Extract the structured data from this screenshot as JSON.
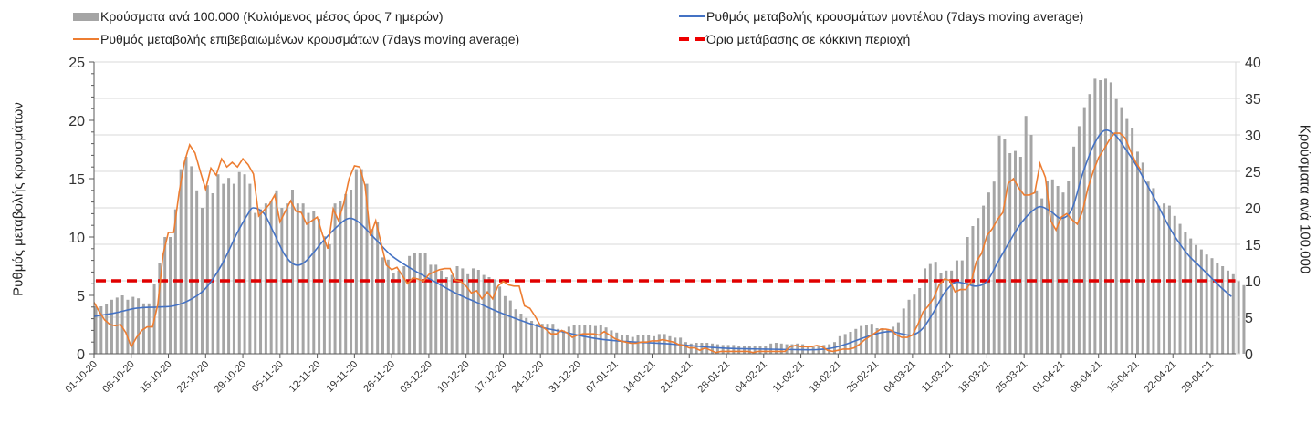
{
  "chart_data": {
    "type": "bar+line",
    "start_date": "01-10-20",
    "legend": [
      {
        "name": "Κρούσματα ανά 100.000 (Κυλιόμενος μέσος όρος 7 ημερών)",
        "color": "#a5a5a5",
        "kind": "bar"
      },
      {
        "name": "Ρυθμός μεταβολής κρουσμάτων μοντέλου (7days moving average)",
        "color": "#4472c4",
        "kind": "line"
      },
      {
        "name": "Ρυθμός μεταβολής επιβεβαιωμένων κρουσμάτων (7days moving average)",
        "color": "#ed7d31",
        "kind": "line"
      },
      {
        "name": "Όριο μετάβασης σε κόκκινη περιοχή",
        "color": "#e00000",
        "kind": "dashed"
      }
    ],
    "ylabel_left": "Ρυθμός μεταβολής κρουσμάτων",
    "ylabel_right": "Κρούσματα ανά 100.000",
    "ylim_left": [
      0,
      25
    ],
    "ylim_right": [
      0,
      40
    ],
    "yticks_left": [
      "0",
      "5",
      "10",
      "15",
      "20",
      "25"
    ],
    "yticks_right": [
      "0",
      "5",
      "10",
      "15",
      "20",
      "25",
      "30",
      "35",
      "40"
    ],
    "grid": true,
    "x_tick_labels": [
      "01-10-20",
      "08-10-20",
      "15-10-20",
      "22-10-20",
      "29-10-20",
      "05-11-20",
      "12-11-20",
      "19-11-20",
      "26-11-20",
      "03-12-20",
      "10-12-20",
      "17-12-20",
      "24-12-20",
      "31-12-20",
      "07-01-21",
      "14-01-21",
      "21-01-21",
      "28-01-21",
      "04-02-21",
      "11-02-21",
      "18-02-21",
      "25-02-21",
      "04-03-21",
      "11-03-21",
      "18-03-21",
      "25-03-21",
      "01-04-21",
      "08-04-21",
      "15-04-21",
      "22-04-21",
      "29-04-21"
    ],
    "x_tick_interval_days": 7,
    "threshold_left": 6.25,
    "bars_right_axis": [
      6.5,
      6.5,
      6.8,
      7.4,
      7.7,
      8.0,
      7.4,
      7.8,
      7.6,
      6.9,
      6.9,
      9.6,
      12.5,
      16.0,
      16.0,
      19.8,
      25.3,
      27.0,
      25.7,
      22.4,
      20.0,
      23.1,
      22.0,
      24.6,
      23.3,
      24.1,
      23.3,
      24.9,
      24.6,
      23.3,
      19.3,
      19.8,
      20.6,
      21.0,
      22.4,
      20.0,
      20.6,
      22.5,
      20.6,
      20.6,
      19.3,
      19.5,
      18.5,
      16.1,
      15.0,
      20.6,
      21.0,
      21.9,
      22.5,
      25.3,
      25.3,
      23.3,
      17.1,
      18.1,
      13.2,
      12.9,
      11.0,
      11.4,
      12.0,
      13.4,
      13.8,
      13.8,
      13.8,
      12.2,
      12.2,
      11.4,
      10.5,
      10.8,
      12.0,
      11.7,
      10.9,
      11.7,
      11.5,
      10.8,
      10.5,
      10.2,
      9.2,
      7.9,
      7.3,
      6.1,
      5.5,
      4.9,
      4.5,
      4.1,
      4.1,
      4.1,
      4.1,
      3.4,
      3.2,
      3.7,
      3.9,
      3.9,
      3.9,
      3.9,
      3.8,
      3.9,
      3.6,
      3.2,
      2.9,
      2.5,
      2.6,
      2.3,
      2.5,
      2.5,
      2.5,
      2.4,
      2.7,
      2.7,
      2.4,
      2.2,
      2.2,
      1.6,
      1.4,
      1.5,
      1.5,
      1.5,
      1.4,
      1.3,
      1.2,
      1.2,
      1.2,
      1.1,
      1.1,
      1.0,
      1.0,
      1.1,
      1.1,
      1.4,
      1.5,
      1.4,
      1.3,
      1.3,
      1.4,
      1.3,
      1.1,
      0.9,
      1.0,
      1.2,
      1.3,
      1.6,
      2.4,
      2.7,
      3.0,
      3.4,
      3.8,
      3.9,
      4.1,
      3.5,
      3.5,
      3.4,
      3.7,
      4.3,
      6.2,
      7.4,
      8.1,
      9.0,
      11.7,
      12.3,
      12.6,
      11.0,
      11.4,
      11.4,
      12.8,
      12.8,
      16.0,
      17.5,
      18.6,
      20.3,
      22.1,
      23.6,
      29.9,
      29.4,
      27.5,
      27.8,
      27.0,
      32.6,
      30.0,
      22.4,
      21.3,
      23.7,
      23.9,
      23.0,
      22.1,
      23.7,
      28.4,
      31.2,
      33.8,
      35.6,
      37.7,
      37.5,
      37.7,
      37.2,
      34.9,
      33.8,
      32.3,
      31.0,
      27.7,
      26.2,
      23.6,
      22.7,
      20.3,
      20.6,
      20.3,
      18.9,
      17.8,
      16.7,
      15.8,
      14.9,
      14.3,
      13.6,
      13.1,
      12.5,
      12.0,
      11.4,
      10.9,
      10.0,
      9.4
    ],
    "model_line_left_keypoints": [
      [
        0,
        3.2
      ],
      [
        4,
        3.5
      ],
      [
        8,
        3.9
      ],
      [
        12,
        4.0
      ],
      [
        15,
        4.1
      ],
      [
        18,
        4.6
      ],
      [
        21,
        5.6
      ],
      [
        24,
        7.6
      ],
      [
        27,
        10.4
      ],
      [
        29,
        12.0
      ],
      [
        30,
        12.5
      ],
      [
        32,
        12.0
      ],
      [
        34,
        10.2
      ],
      [
        36,
        8.4
      ],
      [
        38,
        7.6
      ],
      [
        40,
        8.0
      ],
      [
        43,
        9.6
      ],
      [
        46,
        11.0
      ],
      [
        48,
        11.6
      ],
      [
        50,
        11.2
      ],
      [
        53,
        9.8
      ],
      [
        56,
        8.4
      ],
      [
        60,
        7.2
      ],
      [
        64,
        6.2
      ],
      [
        68,
        5.2
      ],
      [
        72,
        4.4
      ],
      [
        76,
        3.6
      ],
      [
        80,
        2.9
      ],
      [
        84,
        2.3
      ],
      [
        88,
        1.9
      ],
      [
        92,
        1.5
      ],
      [
        96,
        1.2
      ],
      [
        100,
        1.05
      ],
      [
        104,
        0.95
      ],
      [
        108,
        0.85
      ],
      [
        112,
        0.7
      ],
      [
        116,
        0.55
      ],
      [
        120,
        0.45
      ],
      [
        126,
        0.4
      ],
      [
        132,
        0.35
      ],
      [
        136,
        0.35
      ],
      [
        139,
        0.5
      ],
      [
        142,
        0.9
      ],
      [
        145,
        1.4
      ],
      [
        148,
        1.8
      ],
      [
        150,
        1.9
      ],
      [
        152,
        1.7
      ],
      [
        154,
        1.6
      ],
      [
        156,
        2.2
      ],
      [
        158,
        3.6
      ],
      [
        160,
        5.2
      ],
      [
        162,
        6.1
      ],
      [
        164,
        6.0
      ],
      [
        166,
        5.8
      ],
      [
        168,
        6.2
      ],
      [
        170,
        7.8
      ],
      [
        172,
        9.4
      ],
      [
        174,
        10.9
      ],
      [
        176,
        12.0
      ],
      [
        178,
        12.6
      ],
      [
        180,
        12.2
      ],
      [
        182,
        11.6
      ],
      [
        184,
        12.4
      ],
      [
        186,
        15.4
      ],
      [
        188,
        17.8
      ],
      [
        190,
        19.1
      ],
      [
        192,
        18.8
      ],
      [
        194,
        17.6
      ],
      [
        196,
        16.2
      ],
      [
        198,
        14.6
      ],
      [
        200,
        12.9
      ],
      [
        202,
        11.1
      ],
      [
        204,
        9.6
      ],
      [
        206,
        8.4
      ],
      [
        208,
        7.5
      ],
      [
        210,
        6.6
      ],
      [
        212,
        5.7
      ],
      [
        214,
        4.9
      ]
    ],
    "confirmed_line_left_keypoints": [
      [
        0,
        4.4
      ],
      [
        1,
        3.6
      ],
      [
        2,
        2.9
      ],
      [
        3,
        2.5
      ],
      [
        4,
        2.4
      ],
      [
        5,
        2.5
      ],
      [
        6,
        1.8
      ],
      [
        7,
        0.6
      ],
      [
        8,
        1.4
      ],
      [
        9,
        2.0
      ],
      [
        10,
        2.3
      ],
      [
        11,
        2.3
      ],
      [
        12,
        4.2
      ],
      [
        13,
        8.5
      ],
      [
        14,
        10.4
      ],
      [
        15,
        10.4
      ],
      [
        16,
        13.8
      ],
      [
        17,
        16.4
      ],
      [
        18,
        17.9
      ],
      [
        19,
        17.2
      ],
      [
        20,
        15.6
      ],
      [
        21,
        14.1
      ],
      [
        22,
        15.9
      ],
      [
        23,
        15.3
      ],
      [
        24,
        16.7
      ],
      [
        25,
        16.0
      ],
      [
        26,
        16.4
      ],
      [
        27,
        16.0
      ],
      [
        28,
        16.7
      ],
      [
        29,
        16.2
      ],
      [
        30,
        15.4
      ],
      [
        31,
        11.8
      ],
      [
        32,
        12.3
      ],
      [
        33,
        12.8
      ],
      [
        34,
        13.6
      ],
      [
        35,
        11.3
      ],
      [
        36,
        12.2
      ],
      [
        37,
        13.1
      ],
      [
        38,
        12.2
      ],
      [
        39,
        12.1
      ],
      [
        40,
        11.1
      ],
      [
        41,
        11.4
      ],
      [
        42,
        11.7
      ],
      [
        43,
        10.2
      ],
      [
        44,
        9.0
      ],
      [
        45,
        12.4
      ],
      [
        46,
        11.4
      ],
      [
        47,
        12.9
      ],
      [
        48,
        15.0
      ],
      [
        49,
        16.1
      ],
      [
        50,
        16.0
      ],
      [
        51,
        14.4
      ],
      [
        52,
        10.1
      ],
      [
        53,
        11.4
      ],
      [
        54,
        9.5
      ],
      [
        55,
        7.6
      ],
      [
        56,
        7.2
      ],
      [
        57,
        7.4
      ],
      [
        58,
        6.7
      ],
      [
        59,
        6.0
      ],
      [
        60,
        6.5
      ],
      [
        61,
        6.4
      ],
      [
        62,
        6.2
      ],
      [
        63,
        6.8
      ],
      [
        64,
        7.0
      ],
      [
        65,
        7.2
      ],
      [
        66,
        7.3
      ],
      [
        67,
        7.3
      ],
      [
        68,
        6.3
      ],
      [
        69,
        6.2
      ],
      [
        70,
        5.8
      ],
      [
        71,
        5.2
      ],
      [
        72,
        5.4
      ],
      [
        73,
        4.7
      ],
      [
        74,
        5.3
      ],
      [
        75,
        4.7
      ],
      [
        76,
        5.8
      ],
      [
        77,
        6.2
      ],
      [
        78,
        5.9
      ],
      [
        79,
        5.8
      ],
      [
        80,
        5.8
      ],
      [
        81,
        4.1
      ],
      [
        82,
        3.9
      ],
      [
        83,
        3.2
      ],
      [
        84,
        2.4
      ],
      [
        85,
        2.1
      ],
      [
        86,
        1.7
      ],
      [
        87,
        1.7
      ],
      [
        88,
        2.0
      ],
      [
        89,
        1.8
      ],
      [
        90,
        1.4
      ],
      [
        91,
        1.6
      ],
      [
        92,
        1.7
      ],
      [
        93,
        1.7
      ],
      [
        94,
        1.7
      ],
      [
        95,
        1.6
      ],
      [
        96,
        1.9
      ],
      [
        97,
        1.6
      ],
      [
        98,
        1.3
      ],
      [
        99,
        1.1
      ],
      [
        100,
        1.0
      ],
      [
        101,
        0.9
      ],
      [
        102,
        0.9
      ],
      [
        103,
        1.0
      ],
      [
        104,
        1.0
      ],
      [
        105,
        1.1
      ],
      [
        106,
        1.1
      ],
      [
        107,
        1.2
      ],
      [
        108,
        1.1
      ],
      [
        109,
        1.0
      ],
      [
        110,
        0.8
      ],
      [
        111,
        0.7
      ],
      [
        112,
        0.5
      ],
      [
        113,
        0.5
      ],
      [
        114,
        0.3
      ],
      [
        115,
        0.5
      ],
      [
        116,
        0.3
      ],
      [
        117,
        0.1
      ],
      [
        118,
        0.2
      ],
      [
        119,
        0.2
      ],
      [
        120,
        0.2
      ],
      [
        121,
        0.2
      ],
      [
        122,
        0.2
      ],
      [
        123,
        0.2
      ],
      [
        124,
        0.1
      ],
      [
        125,
        0.2
      ],
      [
        126,
        0.2
      ],
      [
        127,
        0.2
      ],
      [
        128,
        0.2
      ],
      [
        129,
        0.2
      ],
      [
        130,
        0.2
      ],
      [
        131,
        0.6
      ],
      [
        132,
        0.7
      ],
      [
        133,
        0.6
      ],
      [
        134,
        0.6
      ],
      [
        135,
        0.6
      ],
      [
        136,
        0.7
      ],
      [
        137,
        0.6
      ],
      [
        138,
        0.3
      ],
      [
        139,
        0.2
      ],
      [
        140,
        0.3
      ],
      [
        141,
        0.4
      ],
      [
        142,
        0.4
      ],
      [
        143,
        0.5
      ],
      [
        144,
        0.8
      ],
      [
        145,
        1.2
      ],
      [
        146,
        1.5
      ],
      [
        147,
        1.8
      ],
      [
        148,
        2.1
      ],
      [
        149,
        2.1
      ],
      [
        150,
        2.0
      ],
      [
        151,
        1.6
      ],
      [
        152,
        1.4
      ],
      [
        153,
        1.4
      ],
      [
        154,
        1.6
      ],
      [
        155,
        2.5
      ],
      [
        156,
        3.6
      ],
      [
        157,
        4.1
      ],
      [
        158,
        4.8
      ],
      [
        159,
        5.9
      ],
      [
        160,
        6.4
      ],
      [
        161,
        6.3
      ],
      [
        162,
        5.3
      ],
      [
        163,
        5.5
      ],
      [
        164,
        5.5
      ],
      [
        165,
        6.1
      ],
      [
        166,
        7.9
      ],
      [
        167,
        8.6
      ],
      [
        168,
        10.1
      ],
      [
        169,
        10.7
      ],
      [
        170,
        11.5
      ],
      [
        171,
        12.1
      ],
      [
        172,
        14.6
      ],
      [
        173,
        15.0
      ],
      [
        174,
        14.2
      ],
      [
        175,
        13.6
      ],
      [
        176,
        13.6
      ],
      [
        177,
        13.8
      ],
      [
        178,
        16.3
      ],
      [
        179,
        15.1
      ],
      [
        180,
        11.4
      ],
      [
        181,
        10.6
      ],
      [
        182,
        11.7
      ],
      [
        183,
        12.0
      ],
      [
        184,
        11.5
      ],
      [
        185,
        11.1
      ],
      [
        186,
        12.2
      ],
      [
        187,
        14.2
      ],
      [
        188,
        15.6
      ],
      [
        189,
        16.8
      ],
      [
        190,
        17.5
      ],
      [
        191,
        18.3
      ],
      [
        192,
        18.9
      ],
      [
        193,
        18.9
      ],
      [
        194,
        18.5
      ],
      [
        195,
        17.4
      ],
      [
        196,
        16.4
      ],
      [
        197,
        15.7
      ]
    ]
  }
}
